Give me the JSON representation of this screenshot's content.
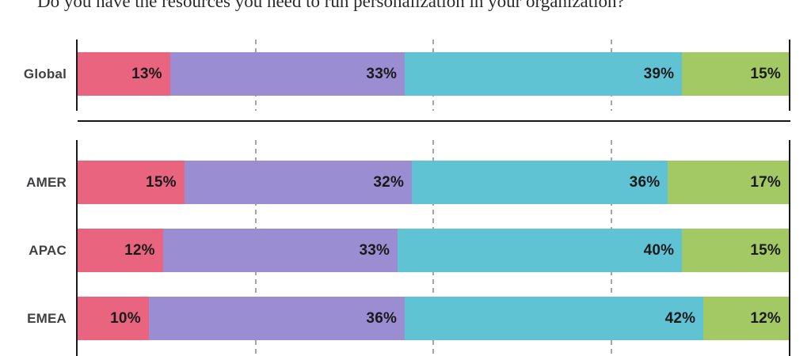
{
  "title": "Do you have the resources you need to run personalization in your organization?",
  "colors": {
    "segments": [
      "#E8647F",
      "#9A8DD1",
      "#5FC3D4",
      "#A2C963"
    ],
    "axis": "#1a1a1a",
    "gridline": "#a6a6a6",
    "row_label": "#414042",
    "value_label": "#1a1a1a",
    "separator": "#151515",
    "background": "#ffffff"
  },
  "chart_data": {
    "type": "bar",
    "stacked": true,
    "orientation": "horizontal",
    "title": "Do you have the resources you need to run personalization in your organization?",
    "unit": "%",
    "xlim": [
      0,
      100
    ],
    "gridlines_pct": [
      25,
      50,
      75
    ],
    "grid": "dashed-vertical",
    "legend": "none",
    "value_labels": "inside-right-of-each-segment",
    "groups": [
      {
        "name": "global",
        "rows": [
          {
            "label": "Global",
            "values": [
              13,
              33,
              39,
              15
            ]
          }
        ]
      },
      {
        "name": "regions",
        "rows": [
          {
            "label": "AMER",
            "values": [
              15,
              32,
              36,
              17
            ]
          },
          {
            "label": "APAC",
            "values": [
              12,
              33,
              40,
              15
            ]
          },
          {
            "label": "EMEA",
            "values": [
              10,
              36,
              42,
              12
            ]
          }
        ]
      }
    ]
  }
}
